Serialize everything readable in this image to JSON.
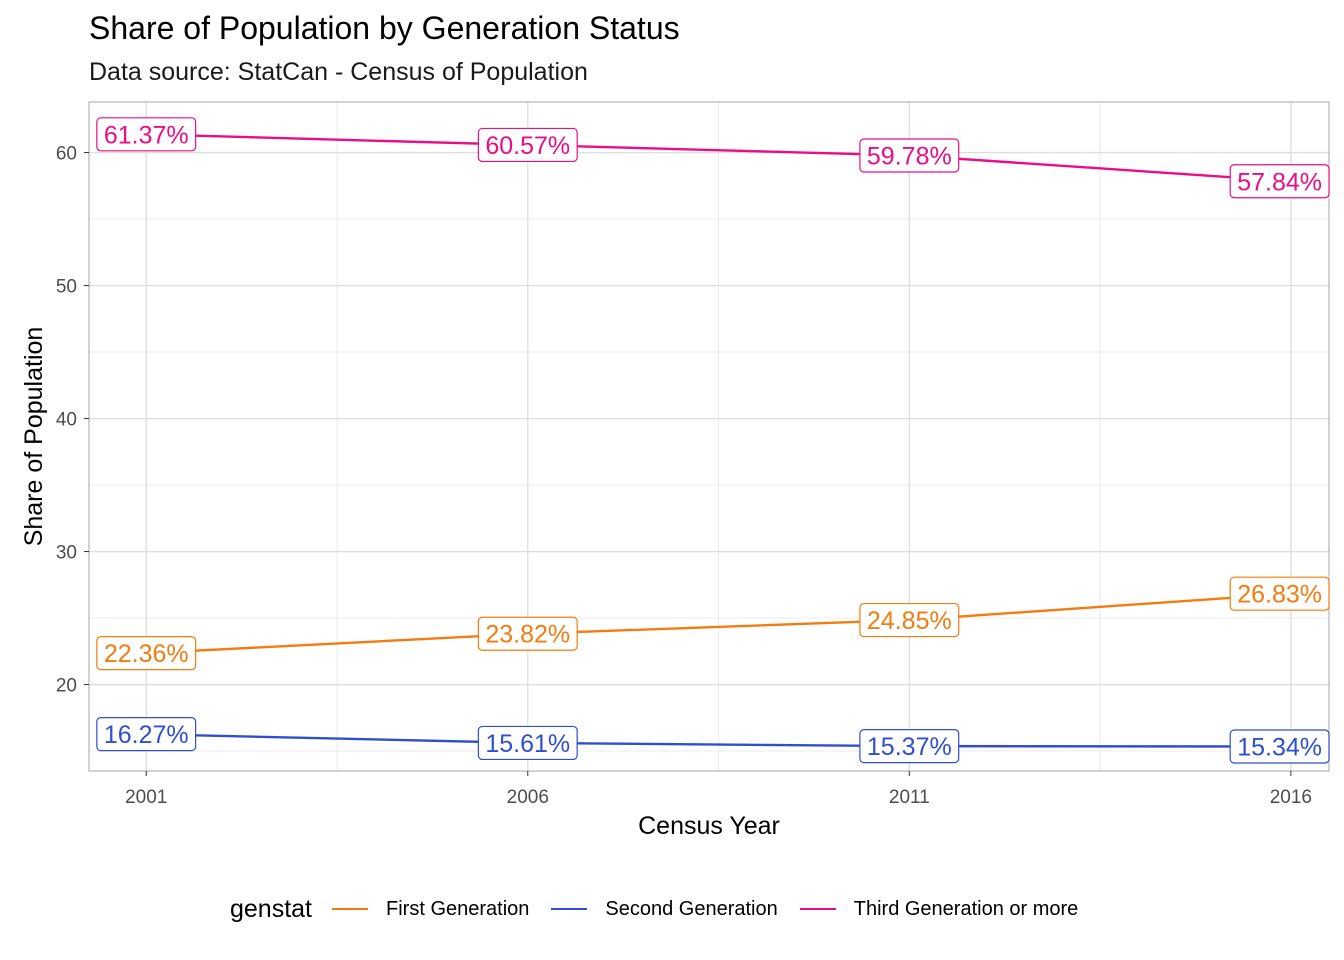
{
  "title": "Share of Population by Generation Status",
  "subtitle": "Data source: StatCan - Census of Population",
  "chart_data": {
    "type": "line",
    "x": [
      2001,
      2006,
      2011,
      2016
    ],
    "xlabel": "Census Year",
    "ylabel": "Share of Population",
    "xlim": [
      2000.25,
      2016.5
    ],
    "ylim": [
      13.5,
      63.8
    ],
    "x_ticks": [
      "2001",
      "2006",
      "2011",
      "2016"
    ],
    "y_ticks": [
      "20",
      "30",
      "40",
      "50",
      "60"
    ],
    "grid": true,
    "legend": {
      "title": "genstat",
      "placement": "bottom"
    },
    "series": [
      {
        "name": "First Generation",
        "color": "#F47B0F",
        "values": [
          22.36,
          23.82,
          24.85,
          26.83
        ],
        "labels": [
          "22.36%",
          "23.82%",
          "24.85%",
          "26.83%"
        ]
      },
      {
        "name": "Second Generation",
        "color": "#2F4FD0",
        "values": [
          16.27,
          15.61,
          15.37,
          15.34
        ],
        "labels": [
          "16.27%",
          "15.61%",
          "15.37%",
          "15.34%"
        ]
      },
      {
        "name": "Third Generation or more",
        "color": "#EC0D86",
        "values": [
          61.37,
          60.57,
          59.78,
          57.84
        ],
        "labels": [
          "61.37%",
          "60.57%",
          "59.78%",
          "57.84%"
        ]
      }
    ]
  }
}
